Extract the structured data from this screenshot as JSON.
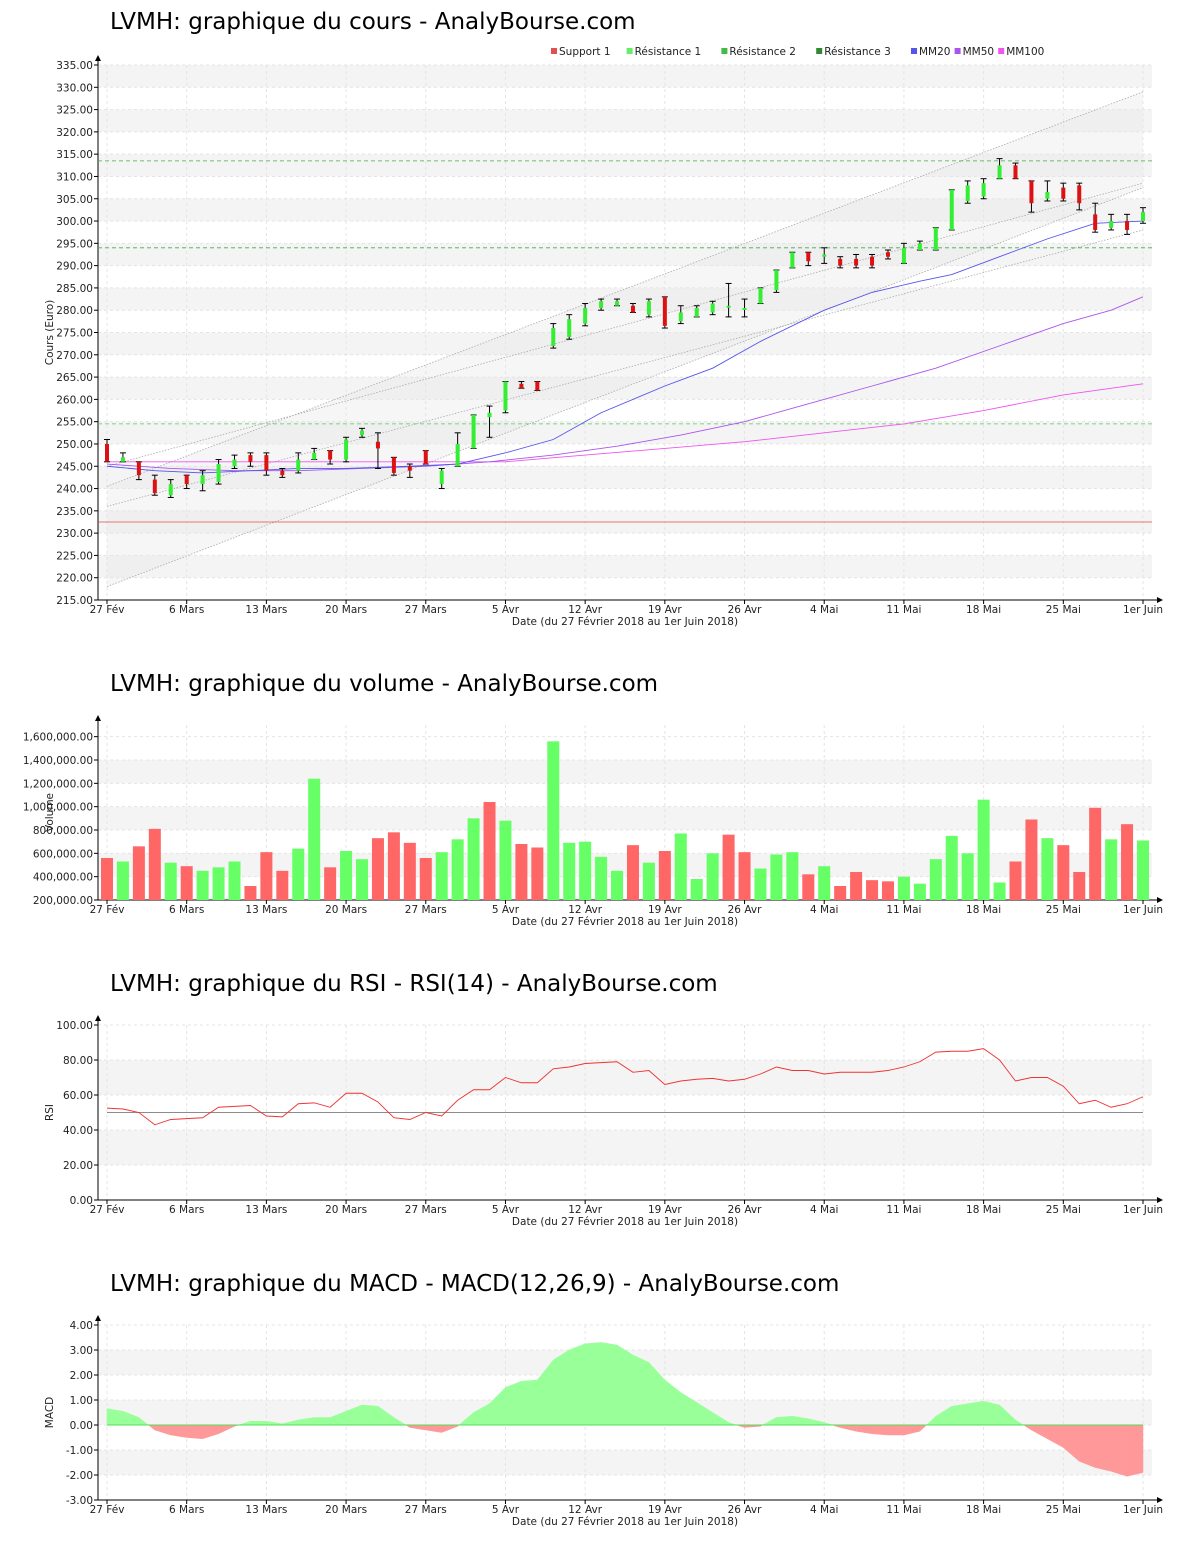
{
  "chart_data": [
    {
      "id": "price",
      "type": "candlestick",
      "title": "LVMH: graphique du cours - AnalyBourse.com",
      "ylabel": "Cours (Euro)",
      "xlabel": "Date (du 27 Février 2018 au 1er Juin 2018)",
      "ylim": [
        215,
        335
      ],
      "yticks": [
        "215.00",
        "220.00",
        "225.00",
        "230.00",
        "235.00",
        "240.00",
        "245.00",
        "250.00",
        "255.00",
        "260.00",
        "265.00",
        "270.00",
        "275.00",
        "280.00",
        "285.00",
        "290.00",
        "295.00",
        "300.00",
        "305.00",
        "310.00",
        "315.00",
        "320.00",
        "325.00",
        "330.00",
        "335.00"
      ],
      "xticks": [
        {
          "label": "27 Fév",
          "i": 0
        },
        {
          "label": "6 Mars",
          "i": 5
        },
        {
          "label": "13 Mars",
          "i": 10
        },
        {
          "label": "20 Mars",
          "i": 15
        },
        {
          "label": "27 Mars",
          "i": 20
        },
        {
          "label": "5 Avr",
          "i": 25
        },
        {
          "label": "12 Avr",
          "i": 30
        },
        {
          "label": "19 Avr",
          "i": 35
        },
        {
          "label": "26 Avr",
          "i": 40
        },
        {
          "label": "4 Mai",
          "i": 45
        },
        {
          "label": "11 Mai",
          "i": 50
        },
        {
          "label": "18 Mai",
          "i": 55
        },
        {
          "label": "25 Mai",
          "i": 60
        },
        {
          "label": "1er Juin",
          "i": 65
        }
      ],
      "legend": [
        {
          "name": "Support 1",
          "color": "#e05050"
        },
        {
          "name": "Résistance 1",
          "color": "#66ee66"
        },
        {
          "name": "Résistance 2",
          "color": "#44bb44"
        },
        {
          "name": "Résistance 3",
          "color": "#338833"
        },
        {
          "name": "MM20",
          "color": "#5555ee"
        },
        {
          "name": "MM50",
          "color": "#aa55ee"
        },
        {
          "name": "MM100",
          "color": "#ee55ee"
        }
      ],
      "levels": {
        "support1": 232.5,
        "resistance1": 254.5,
        "resistance2": 294,
        "resistance3": 313.5
      },
      "channel": {
        "upper": [
          240.5,
          329
        ],
        "lower": [
          218,
          307.5
        ],
        "mid_upper": [
          245,
          308.5
        ],
        "mid_lower": [
          236,
          298
        ]
      },
      "candles": [
        [
          250,
          246,
          251,
          246
        ],
        [
          246,
          247,
          248,
          246
        ],
        [
          246,
          243,
          246,
          242
        ],
        [
          242,
          239,
          243,
          238.5
        ],
        [
          238.5,
          241,
          242,
          238
        ],
        [
          243,
          241,
          243,
          240
        ],
        [
          241,
          243,
          244,
          239.5
        ],
        [
          241.5,
          245.5,
          246.5,
          241
        ],
        [
          245,
          246.5,
          247.5,
          244.5
        ],
        [
          247.5,
          246,
          248,
          245
        ],
        [
          247.5,
          244,
          248,
          243
        ],
        [
          244,
          243,
          244.5,
          242.5
        ],
        [
          244,
          246.5,
          248,
          243.5
        ],
        [
          246.5,
          248,
          249,
          246.5
        ],
        [
          248.5,
          246.5,
          248.5,
          245.5
        ],
        [
          246.5,
          251,
          251.5,
          246
        ],
        [
          252,
          253,
          253.5,
          251.5
        ],
        [
          250.5,
          249,
          252.5,
          244.5
        ],
        [
          247,
          243.5,
          247,
          243
        ],
        [
          245,
          244,
          245.5,
          242.5
        ],
        [
          248.5,
          245.5,
          248.5,
          245.5
        ],
        [
          241,
          244,
          244.5,
          240
        ],
        [
          245,
          250,
          252.5,
          245
        ],
        [
          249,
          256.5,
          256.5,
          249
        ],
        [
          256,
          257,
          258.5,
          251.5
        ],
        [
          257.5,
          264,
          264,
          257
        ],
        [
          263.5,
          262.5,
          264,
          262.5
        ],
        [
          264,
          262,
          264,
          262
        ],
        [
          272,
          276,
          277,
          271.5
        ],
        [
          274,
          278,
          279,
          273.5
        ],
        [
          277,
          280.5,
          281.5,
          276.5
        ],
        [
          280.5,
          282,
          282.5,
          280
        ],
        [
          281,
          282,
          282.5,
          281
        ],
        [
          281,
          279.5,
          281.5,
          279.5
        ],
        [
          279,
          282,
          282.5,
          278.5
        ],
        [
          283,
          276.5,
          283,
          276
        ],
        [
          277.5,
          279.5,
          281,
          277
        ],
        [
          278.5,
          280.5,
          281,
          278.5
        ],
        [
          279.5,
          281.5,
          282,
          279
        ],
        [
          281,
          281,
          286,
          278.5
        ],
        [
          280.5,
          280.5,
          282.5,
          278.5
        ],
        [
          281.5,
          285,
          285,
          281.5
        ],
        [
          284.5,
          289,
          289,
          284
        ],
        [
          289.5,
          293,
          293,
          289.5
        ],
        [
          293,
          291,
          293,
          290
        ],
        [
          292,
          292.5,
          294,
          290.5
        ],
        [
          291.5,
          290,
          292,
          289.5
        ],
        [
          291.5,
          290,
          292.5,
          289.5
        ],
        [
          292,
          290,
          292.5,
          289.5
        ],
        [
          293,
          292,
          293.5,
          291.5
        ],
        [
          290.5,
          294,
          295,
          290.5
        ],
        [
          293.5,
          295,
          295.5,
          293.5
        ],
        [
          293.5,
          298.5,
          298.5,
          293.5
        ],
        [
          298,
          307,
          307,
          298
        ],
        [
          304.5,
          308,
          309,
          304
        ],
        [
          305.5,
          308.5,
          309.5,
          305
        ],
        [
          309.5,
          312.5,
          314,
          309.5
        ],
        [
          312.5,
          309.5,
          313,
          309.5
        ],
        [
          309,
          304,
          309,
          302
        ],
        [
          305,
          306.5,
          309,
          304.5
        ],
        [
          307.5,
          305,
          308.5,
          304.5
        ],
        [
          308,
          304,
          308.5,
          302.5
        ],
        [
          301.5,
          298,
          304,
          297.5
        ],
        [
          298.5,
          300,
          301.5,
          298
        ],
        [
          300,
          298,
          301.5,
          297
        ],
        [
          300,
          302,
          303,
          299.5
        ]
      ],
      "mm20": [
        [
          0,
          245
        ],
        [
          3,
          244
        ],
        [
          6,
          243.5
        ],
        [
          9,
          244
        ],
        [
          12,
          244.5
        ],
        [
          15,
          244.5
        ],
        [
          19,
          245
        ],
        [
          22,
          245.5
        ],
        [
          25,
          248
        ],
        [
          28,
          251
        ],
        [
          31,
          257
        ],
        [
          35,
          263
        ],
        [
          38,
          267
        ],
        [
          41,
          273
        ],
        [
          45,
          280
        ],
        [
          48,
          284
        ],
        [
          51,
          286.5
        ],
        [
          53,
          288
        ],
        [
          56,
          292
        ],
        [
          59,
          296
        ],
        [
          62,
          299.5
        ],
        [
          65,
          300
        ]
      ],
      "mm50": [
        [
          0,
          245.5
        ],
        [
          4,
          244.5
        ],
        [
          8,
          244
        ],
        [
          12,
          244
        ],
        [
          16,
          244.5
        ],
        [
          20,
          245
        ],
        [
          24,
          246
        ],
        [
          28,
          247.5
        ],
        [
          32,
          249.5
        ],
        [
          36,
          252
        ],
        [
          40,
          255
        ],
        [
          44,
          259
        ],
        [
          48,
          263
        ],
        [
          52,
          267
        ],
        [
          56,
          272
        ],
        [
          60,
          277
        ],
        [
          63,
          280
        ],
        [
          65,
          283
        ]
      ],
      "mm100": [
        [
          0,
          246
        ],
        [
          5,
          246
        ],
        [
          10,
          246
        ],
        [
          15,
          246
        ],
        [
          20,
          246
        ],
        [
          25,
          246
        ],
        [
          30,
          247.5
        ],
        [
          35,
          249
        ],
        [
          40,
          250.5
        ],
        [
          45,
          252.5
        ],
        [
          50,
          254.5
        ],
        [
          55,
          257.5
        ],
        [
          60,
          261
        ],
        [
          65,
          263.5
        ]
      ]
    },
    {
      "id": "volume",
      "type": "bar",
      "title": "LVMH: graphique du volume - AnalyBourse.com",
      "ylabel": "Volume",
      "xlabel": "Date (du 27 Février 2018 au 1er Juin 2018)",
      "ylim": [
        200000,
        1700000
      ],
      "yticks": [
        "200,000.00",
        "400,000.00",
        "600,000.00",
        "800,000.00",
        "1,000,000.00",
        "1,200,000.00",
        "1,400,000.00",
        "1,600,000.00"
      ],
      "ytick_values": [
        200000,
        400000,
        600000,
        800000,
        1000000,
        1200000,
        1400000,
        1600000
      ],
      "values": [
        560000,
        530000,
        660000,
        810000,
        520000,
        490000,
        450000,
        480000,
        530000,
        320000,
        610000,
        450000,
        640000,
        1240000,
        480000,
        620000,
        550000,
        730000,
        780000,
        690000,
        560000,
        610000,
        720000,
        900000,
        1040000,
        880000,
        680000,
        650000,
        1560000,
        690000,
        700000,
        570000,
        450000,
        670000,
        520000,
        620000,
        770000,
        380000,
        600000,
        760000,
        610000,
        470000,
        590000,
        610000,
        420000,
        490000,
        320000,
        440000,
        370000,
        360000,
        400000,
        340000,
        550000,
        750000,
        600000,
        1060000,
        350000,
        530000,
        890000,
        730000,
        670000,
        440000,
        990000,
        720000,
        850000,
        710000
      ],
      "up": [
        false,
        true,
        false,
        false,
        true,
        false,
        true,
        true,
        true,
        false,
        false,
        false,
        true,
        true,
        false,
        true,
        true,
        false,
        false,
        false,
        false,
        true,
        true,
        true,
        false,
        true,
        false,
        false,
        true,
        true,
        true,
        true,
        true,
        false,
        true,
        false,
        true,
        true,
        true,
        false,
        false,
        true,
        true,
        true,
        false,
        true,
        false,
        false,
        false,
        false,
        true,
        true,
        true,
        true,
        true,
        true,
        true,
        false,
        false,
        true,
        false,
        false,
        false,
        true,
        false,
        true
      ]
    },
    {
      "id": "rsi",
      "type": "line",
      "title": "LVMH: graphique du RSI - RSI(14) - AnalyBourse.com",
      "ylabel": "RSI",
      "xlabel": "Date (du 27 Février 2018 au 1er Juin 2018)",
      "ylim": [
        0,
        100
      ],
      "yticks": [
        "0.00",
        "20.00",
        "40.00",
        "60.00",
        "80.00",
        "100.00"
      ],
      "ytick_values": [
        0,
        20,
        40,
        60,
        80,
        100
      ],
      "reference": 50,
      "values": [
        52.5,
        52,
        50,
        43,
        46,
        46.5,
        47,
        53,
        53.5,
        54,
        48,
        47.5,
        55,
        55.5,
        53,
        61,
        61,
        56,
        47,
        46,
        50,
        48,
        57,
        63,
        63,
        70,
        67,
        67,
        75,
        76,
        78,
        78.5,
        79,
        73,
        74,
        66,
        68,
        69,
        69.5,
        68,
        69,
        72,
        76,
        74,
        74,
        72,
        73,
        73,
        73,
        74,
        76,
        79,
        84.5,
        85,
        85,
        86.5,
        80,
        68,
        70,
        70,
        65,
        55,
        57,
        53,
        55,
        59
      ]
    },
    {
      "id": "macd",
      "type": "area",
      "title": "LVMH: graphique du MACD - MACD(12,26,9) - AnalyBourse.com",
      "ylabel": "MACD",
      "xlabel": "Date (du 27 Février 2018 au 1er Juin 2018)",
      "ylim": [
        -3,
        4
      ],
      "yticks": [
        "-3.00",
        "-2.00",
        "-1.00",
        "0.00",
        "1.00",
        "2.00",
        "3.00",
        "4.00"
      ],
      "ytick_values": [
        -3,
        -2,
        -1,
        0,
        1,
        2,
        3,
        4
      ],
      "values": [
        0.65,
        0.55,
        0.3,
        -0.2,
        -0.4,
        -0.5,
        -0.55,
        -0.35,
        -0.05,
        0.15,
        0.15,
        0.05,
        0.2,
        0.3,
        0.3,
        0.55,
        0.8,
        0.75,
        0.3,
        -0.1,
        -0.2,
        -0.3,
        -0.05,
        0.5,
        0.85,
        1.5,
        1.75,
        1.8,
        2.6,
        3,
        3.25,
        3.3,
        3.2,
        2.8,
        2.5,
        1.8,
        1.3,
        0.9,
        0.5,
        0.1,
        -0.1,
        -0.05,
        0.3,
        0.35,
        0.25,
        0.1,
        -0.1,
        -0.25,
        -0.35,
        -0.4,
        -0.4,
        -0.25,
        0.35,
        0.75,
        0.85,
        0.95,
        0.8,
        0.2,
        -0.2,
        -0.55,
        -0.9,
        -1.45,
        -1.7,
        -1.85,
        -2.05,
        -1.9
      ]
    }
  ]
}
